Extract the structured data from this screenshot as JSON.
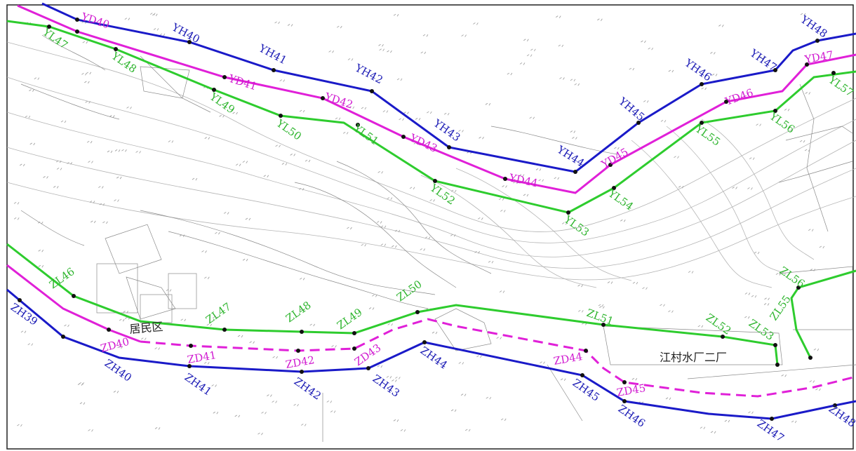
{
  "colors": {
    "yh_line": "#1a1ac8",
    "yd_line": "#e020d8",
    "yl_line": "#2ecc2e",
    "zh_line": "#1a1ac8",
    "zd_line": "#e020d8",
    "zl_line": "#2ecc2e",
    "blue_label": "#1b1bb5",
    "magenta_label": "#d01ad0",
    "green_label": "#2fb52f"
  },
  "labels": {
    "yh": [
      "YH40",
      "YH41",
      "YH42",
      "YH43",
      "YH44",
      "YH45",
      "YH46",
      "YH47",
      "YH48"
    ],
    "yd": [
      "YD40",
      "YD41",
      "YD42",
      "YD43",
      "YD44",
      "YD45",
      "YD46",
      "YD47"
    ],
    "yl": [
      "YL47",
      "YL48",
      "YL49",
      "YL50",
      "YL51",
      "YL52",
      "YL53",
      "YL54",
      "YL55",
      "YL56",
      "YL57"
    ],
    "zh": [
      "ZH39",
      "ZH40",
      "ZH41",
      "ZH42",
      "ZH43",
      "ZH44",
      "ZH45",
      "ZH46",
      "ZH47",
      "ZH48"
    ],
    "zd": [
      "ZD40",
      "ZD41",
      "ZD42",
      "ZD43",
      "ZD44",
      "ZD45"
    ],
    "zl": [
      "ZL46",
      "ZL47",
      "ZL48",
      "ZL49",
      "ZL50",
      "ZL51",
      "ZL52",
      "ZL53",
      "ZL55",
      "ZL56"
    ]
  },
  "places": {
    "residential": "居民区",
    "water_plant": "江村水厂二厂"
  }
}
